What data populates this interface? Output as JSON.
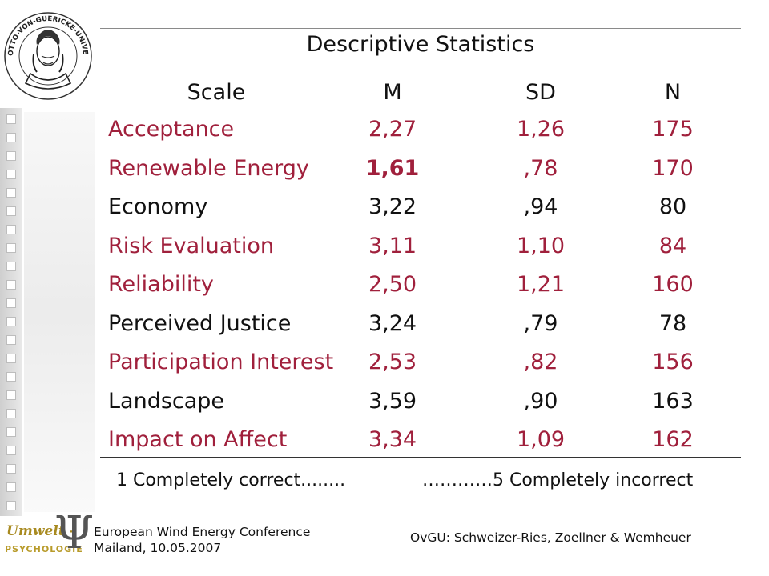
{
  "slide": {
    "title": "Descriptive Statistics",
    "header": {
      "scale": "Scale",
      "m": "M",
      "sd": "SD",
      "n": "N"
    },
    "rows": [
      {
        "scale": "Acceptance",
        "m": "2,27",
        "sd": "1,26",
        "n": "175",
        "highlight": true,
        "bold_m": false
      },
      {
        "scale": "Renewable Energy",
        "m": "1,61",
        "sd": ",78",
        "n": "170",
        "highlight": true,
        "bold_m": true
      },
      {
        "scale": "Economy",
        "m": "3,22",
        "sd": ",94",
        "n": "80",
        "highlight": false,
        "bold_m": false
      },
      {
        "scale": "Risk Evaluation",
        "m": "3,11",
        "sd": "1,10",
        "n": "84",
        "highlight": true,
        "bold_m": false
      },
      {
        "scale": "Reliability",
        "m": "2,50",
        "sd": "1,21",
        "n": "160",
        "highlight": true,
        "bold_m": false
      },
      {
        "scale": "Perceived Justice",
        "m": "3,24",
        "sd": ",79",
        "n": "78",
        "highlight": false,
        "bold_m": false
      },
      {
        "scale": "Participation Interest",
        "m": "2,53",
        "sd": ",82",
        "n": "156",
        "highlight": true,
        "bold_m": false
      },
      {
        "scale": "Landscape",
        "m": "3,59",
        "sd": ",90",
        "n": "163",
        "highlight": false,
        "bold_m": false
      },
      {
        "scale": "Impact on Affect",
        "m": "3,34",
        "sd": "1,09",
        "n": "162",
        "highlight": true,
        "bold_m": false
      }
    ],
    "scale_low": "1 Completely correct........",
    "scale_high": "…………5 Completely incorrect",
    "footer_left_line1": "European Wind Energy Conference",
    "footer_left_line2": "Mailand, 10.05.2007",
    "footer_right": "OvGU: Schweizer-Ries, Zoellner & Wemheuer",
    "seal_text": "OTTO-VON-GUERICKE-UNIVERSITÄT MAGDEBURG",
    "logo_text1": "Umwelt -",
    "logo_text2": "PSYCHOLOGIE",
    "logo_symbol": "Ψ"
  },
  "colors": {
    "highlight": "#a0203c",
    "text": "#111111"
  }
}
